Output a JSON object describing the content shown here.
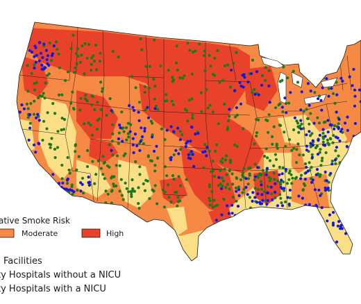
{
  "legend": {
    "risk_title": "ative Smoke Risk",
    "risk_items": [
      {
        "label": "Moderate",
        "color": "#f68a45"
      },
      {
        "label": "High",
        "color": "#e8432a"
      }
    ],
    "facility_title": "Facilities",
    "facility_items": [
      {
        "label": "ty Hospitals without a NICU",
        "color": "#1a7a1a"
      },
      {
        "label": "ty Hospitals with a NICU",
        "color": "#1515e0"
      }
    ]
  },
  "colors": {
    "low_risk": "#fadf87",
    "moderate_risk": "#f68a45",
    "high_risk": "#e8432a",
    "no_nicu": "#1a7a1a",
    "with_nicu": "#1515e0",
    "border": "#1a1a1a"
  }
}
